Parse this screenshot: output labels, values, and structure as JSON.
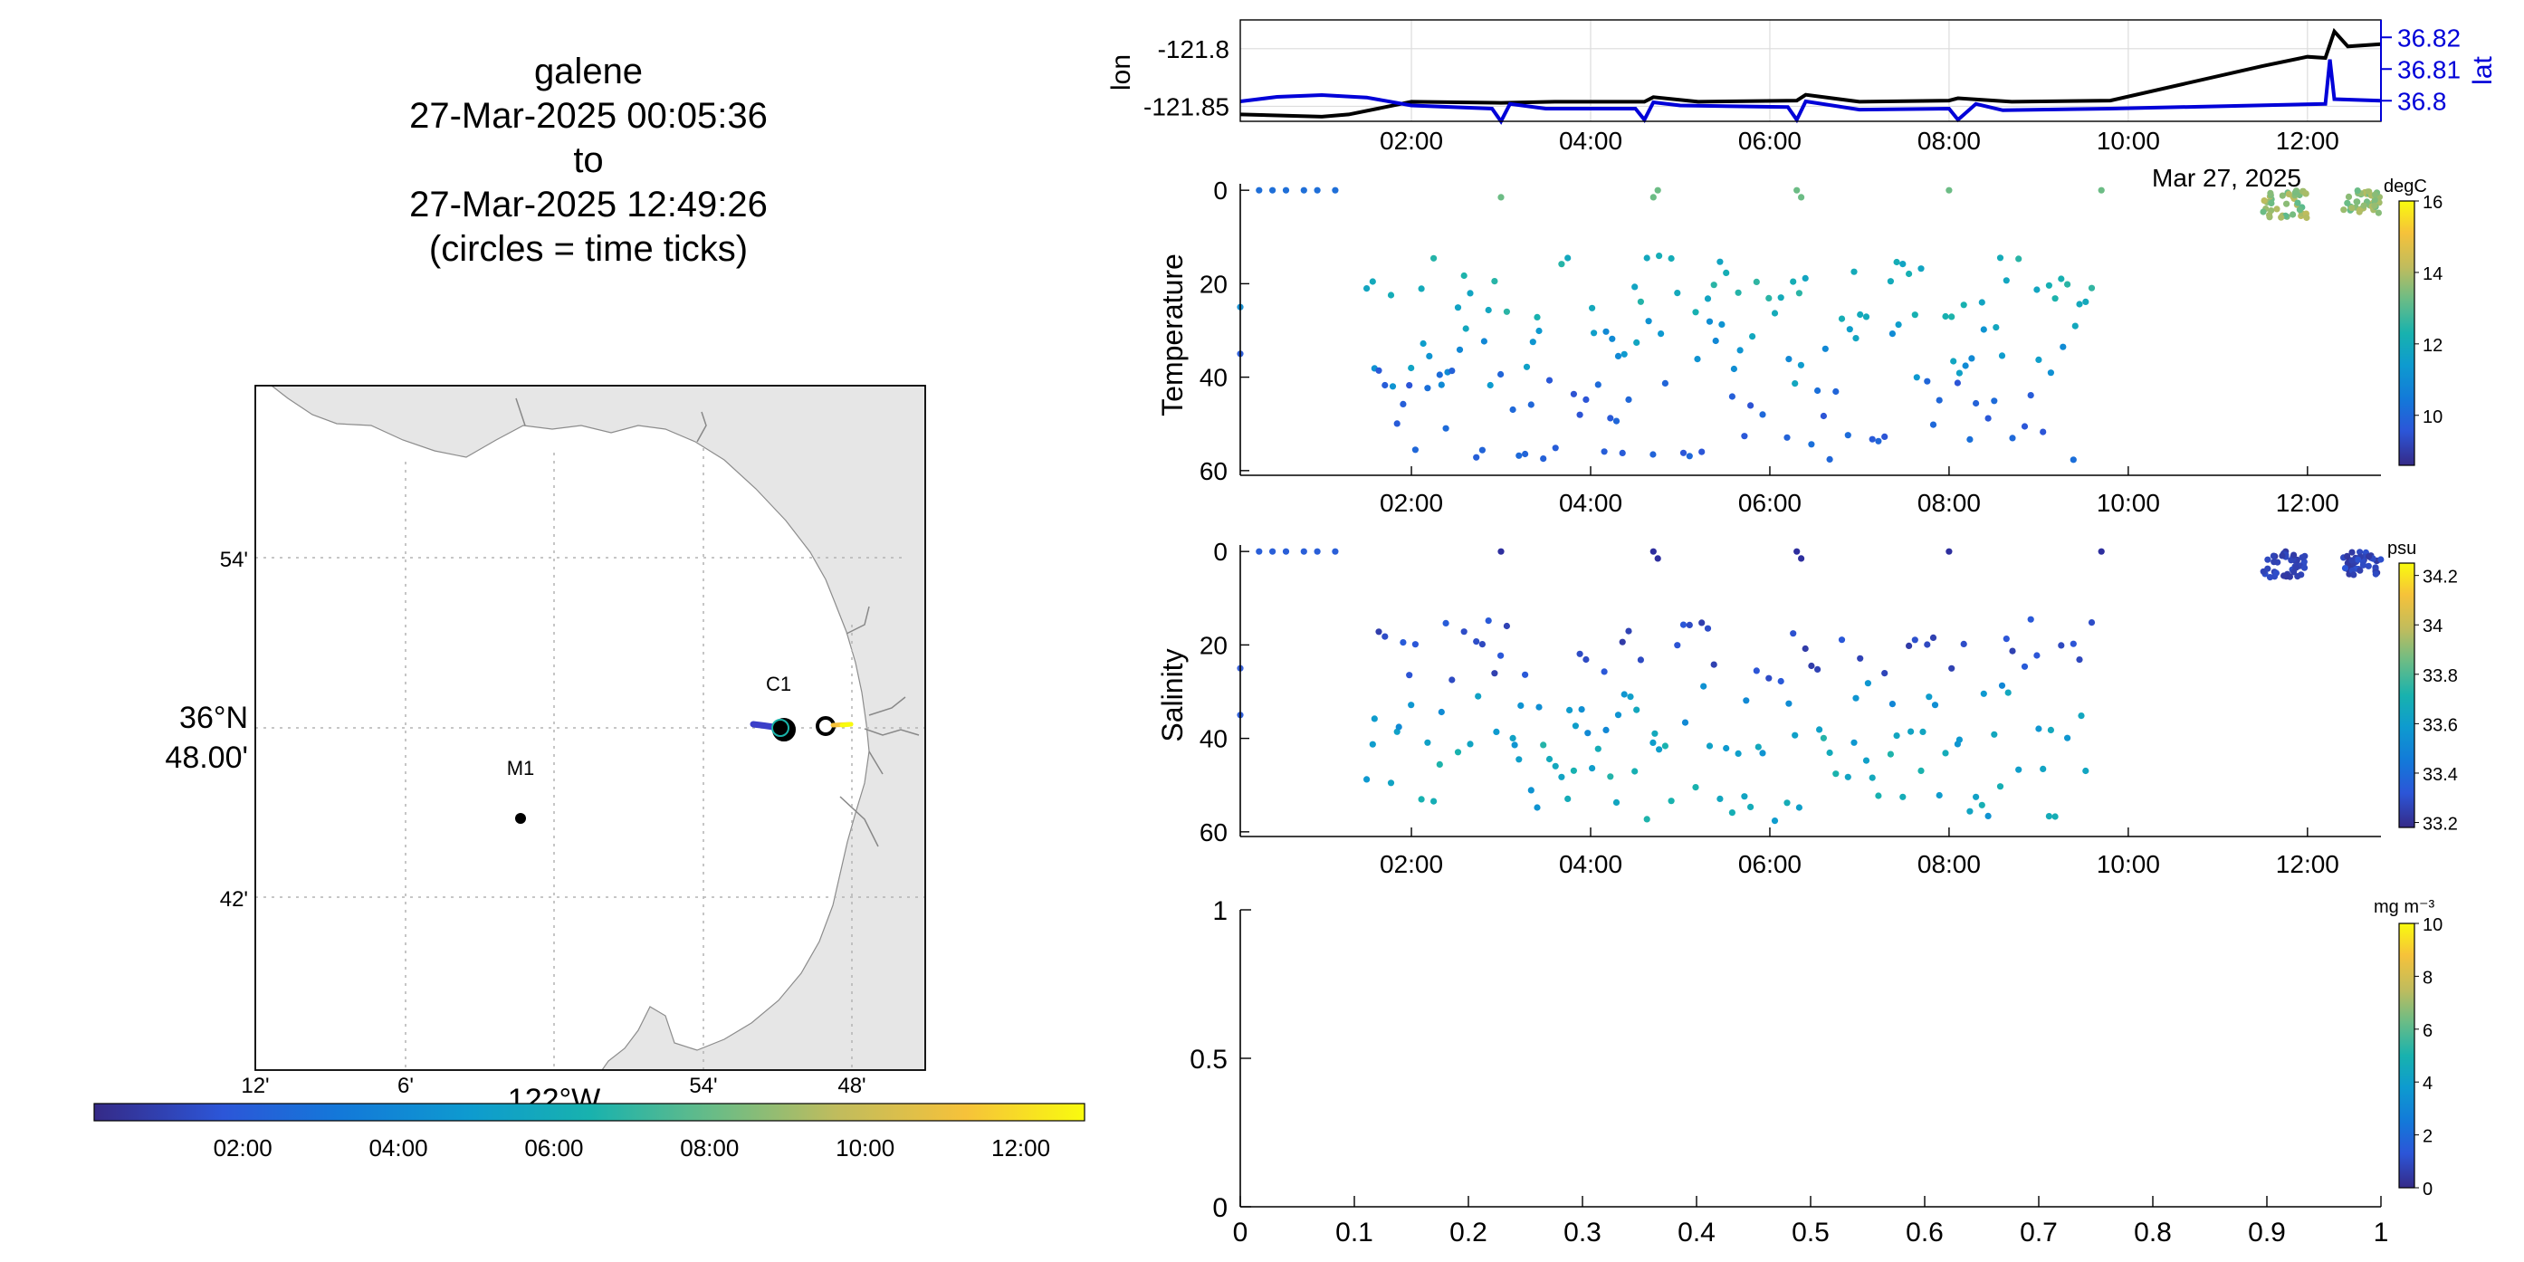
{
  "title": {
    "lines": [
      "galene",
      "27-Mar-2025 00:05:36",
      "to",
      "27-Mar-2025 12:49:26",
      "(circles = time ticks)"
    ]
  },
  "map": {
    "lat_ticks": [
      "54'",
      "42'"
    ],
    "lat_center_label": [
      "36°N",
      "48.00'"
    ],
    "lon_ticks": [
      "12'",
      "6'",
      "54'",
      "48'"
    ],
    "lon_center_label": "122°W",
    "stations": [
      {
        "name": "C1",
        "lon": -121.85,
        "lat": 36.8
      },
      {
        "name": "M1",
        "lon": -122.03,
        "lat": 36.75
      }
    ],
    "land_color": "#e6e6e6",
    "time_colorbar": {
      "ticks": [
        "02:00",
        "04:00",
        "06:00",
        "08:00",
        "10:00",
        "12:00"
      ],
      "colormap": "parula"
    }
  },
  "chart_data": [
    {
      "type": "line",
      "title": "",
      "ylabel": "lon",
      "y2label": "lat",
      "yticks": [
        "-121.8",
        "-121.85"
      ],
      "y2ticks": [
        "36.82",
        "36.81",
        "36.8"
      ],
      "xticks": [
        "02:00",
        "04:00",
        "06:00",
        "08:00",
        "10:00",
        "12:00"
      ],
      "xlabel_date": "Mar 27, 2025",
      "xlim": [
        0.09,
        12.82
      ],
      "ylim": [
        -121.863,
        -121.775
      ],
      "y2lim": [
        36.7935,
        36.8255
      ],
      "grid": true,
      "series": [
        {
          "color": "#000000",
          "x": [
            0.09,
            1.0,
            1.3,
            2.0,
            3.0,
            3.6,
            4.6,
            4.7,
            5.2,
            6.3,
            6.4,
            7.0,
            8.0,
            8.1,
            8.7,
            9.8,
            11.5,
            12.0,
            12.2,
            12.3,
            12.45,
            12.82
          ],
          "y": [
            -121.857,
            -121.859,
            -121.857,
            -121.846,
            -121.847,
            -121.846,
            -121.846,
            -121.842,
            -121.846,
            -121.845,
            -121.84,
            -121.846,
            -121.845,
            -121.843,
            -121.846,
            -121.845,
            -121.815,
            -121.807,
            -121.808,
            -121.785,
            -121.798,
            -121.796
          ]
        },
        {
          "color": "#0000d8",
          "x": [
            0.09,
            0.5,
            1.0,
            1.5,
            2.0,
            2.9,
            3.0,
            3.1,
            3.5,
            4.5,
            4.6,
            4.7,
            5.0,
            6.2,
            6.3,
            6.4,
            7.0,
            8.0,
            8.1,
            8.3,
            8.6,
            9.8,
            12.2,
            12.25,
            12.3,
            12.82
          ],
          "y": [
            36.7998,
            36.8012,
            36.8018,
            36.801,
            36.7985,
            36.7975,
            36.7935,
            36.799,
            36.7975,
            36.7975,
            36.794,
            36.7995,
            36.7985,
            36.798,
            36.794,
            36.7998,
            36.7972,
            36.7975,
            36.794,
            36.799,
            36.797,
            36.7975,
            36.799,
            36.813,
            36.8005,
            36.8
          ]
        }
      ]
    },
    {
      "type": "scatter",
      "ylabel": "Temperature",
      "xticks": [
        "02:00",
        "04:00",
        "06:00",
        "08:00",
        "10:00",
        "12:00"
      ],
      "xlabel_date": "Mar 27, 2025",
      "xlim": [
        0.09,
        12.82
      ],
      "ylim": [
        61,
        -1
      ],
      "yticks": [
        "0",
        "20",
        "40",
        "60"
      ],
      "colorbar": {
        "label": "degC",
        "ticks": [
          "16",
          "14",
          "12",
          "10"
        ],
        "range": [
          8.6,
          16
        ]
      },
      "points": "generated"
    },
    {
      "type": "scatter",
      "ylabel": "Salinity",
      "xticks": [
        "02:00",
        "04:00",
        "06:00",
        "08:00",
        "10:00",
        "12:00"
      ],
      "xlabel_date": "Mar 27, 2025",
      "xlim": [
        0.09,
        12.82
      ],
      "ylim": [
        61,
        -1
      ],
      "yticks": [
        "0",
        "20",
        "40",
        "60"
      ],
      "colorbar": {
        "label": "psu",
        "ticks": [
          "34.2",
          "34",
          "33.8",
          "33.6",
          "33.4",
          "33.2"
        ],
        "range": [
          33.18,
          34.25
        ]
      },
      "points": "generated"
    },
    {
      "type": "scatter",
      "ylabel": "",
      "xlim": [
        0,
        1
      ],
      "ylim": [
        0,
        1
      ],
      "xticks": [
        "0",
        "0.1",
        "0.2",
        "0.3",
        "0.4",
        "0.5",
        "0.6",
        "0.7",
        "0.8",
        "0.9",
        "1"
      ],
      "yticks": [
        "0",
        "0.5",
        "1"
      ],
      "colorbar": {
        "label": "mg m⁻³",
        "ticks": [
          "10",
          "8",
          "6",
          "4",
          "2",
          "0"
        ],
        "range": [
          0,
          10
        ]
      },
      "points": []
    }
  ]
}
